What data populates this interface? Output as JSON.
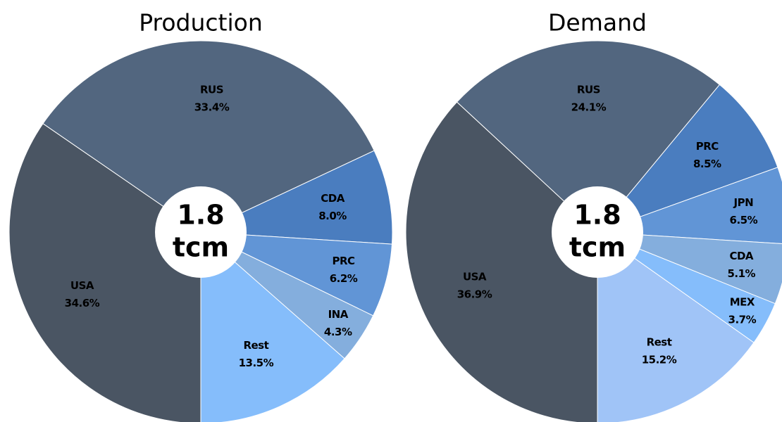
{
  "chart_data": [
    {
      "type": "pie",
      "title": "Production",
      "center_lines": [
        "1.8",
        "tcm"
      ],
      "categories": [
        "USA",
        "RUS",
        "CDA",
        "PRC",
        "INA",
        "Rest"
      ],
      "values": [
        34.6,
        33.4,
        8.0,
        6.2,
        4.3,
        13.5
      ],
      "value_labels": [
        "34.6%",
        "33.4%",
        "8.0%",
        "6.2%",
        "4.3%",
        "13.5%"
      ],
      "colors": [
        "#4a5563",
        "#52667f",
        "#4a7dbf",
        "#6195d6",
        "#84aedd",
        "#85bdfb"
      ]
    },
    {
      "type": "pie",
      "title": "Demand",
      "center_lines": [
        "1.8",
        "tcm"
      ],
      "categories": [
        "USA",
        "RUS",
        "PRC",
        "JPN",
        "CDA",
        "MEX",
        "Rest"
      ],
      "values": [
        36.9,
        24.1,
        8.5,
        6.5,
        5.1,
        3.7,
        15.2
      ],
      "value_labels": [
        "36.9%",
        "24.1%",
        "8.5%",
        "6.5%",
        "5.1%",
        "3.7%",
        "15.2%"
      ],
      "colors": [
        "#4a5563",
        "#52667f",
        "#4a7dbf",
        "#6195d6",
        "#84aedd",
        "#85bdfb",
        "#a0c4f7"
      ]
    }
  ]
}
